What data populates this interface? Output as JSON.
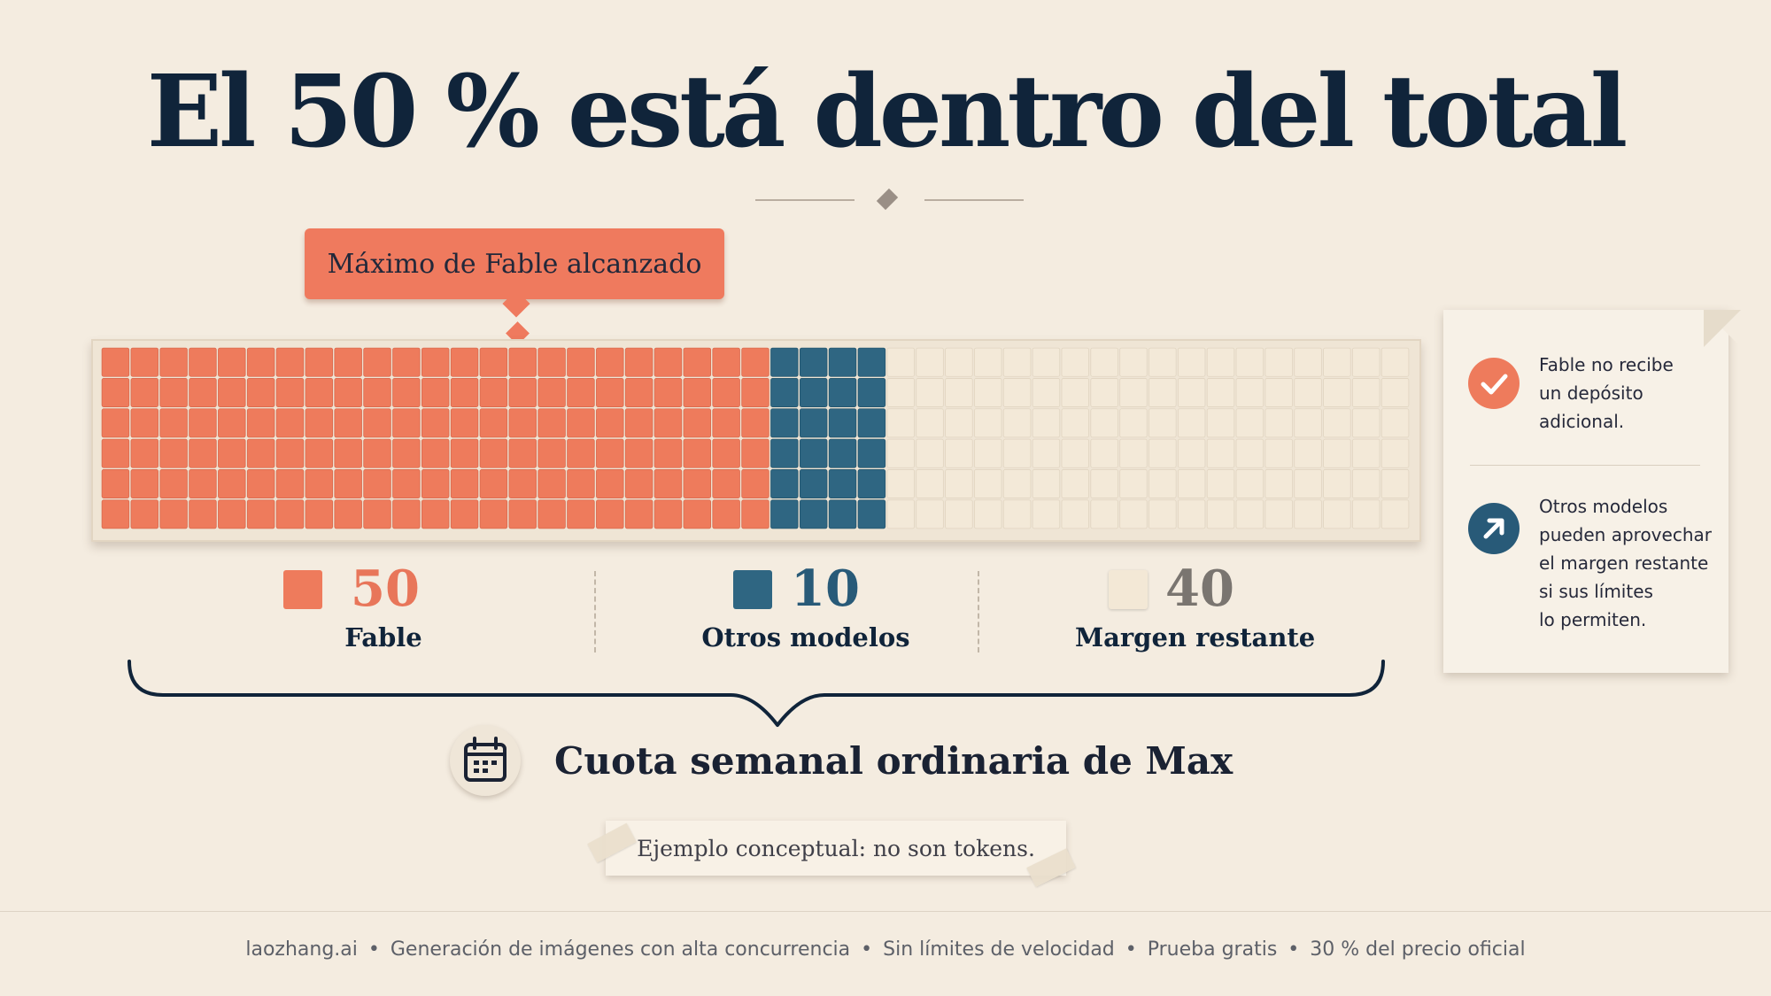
{
  "title": "El 50 % está dentro del total",
  "callout": "Máximo de Fable alcanzado",
  "chart_data": {
    "type": "waffle",
    "title": "El 50 % está dentro del total",
    "grid": {
      "rows": 6,
      "cols": 45
    },
    "categories": [
      "Fable",
      "Otros modelos",
      "Margen restante"
    ],
    "values": [
      50,
      10,
      40
    ],
    "colors": [
      "#ee7b5c",
      "#2f6682",
      "#f3e9d8"
    ],
    "annotation": "Máximo de Fable alcanzado",
    "total_label": "Cuota semanal ordinaria de Max"
  },
  "stats": [
    {
      "value": "50",
      "label": "Fable",
      "color": "#ee7b5c",
      "num_color": "#e8765a"
    },
    {
      "value": "10",
      "label": "Otros modelos",
      "color": "#2f6682",
      "num_color": "#285a78"
    },
    {
      "value": "40",
      "label": "Margen restante",
      "color": "#f3e8d6",
      "num_color": "#7a7570"
    }
  ],
  "quota": {
    "label": "Cuota semanal ordinaria de Max",
    "icon": "calendar-icon"
  },
  "note": "Ejemplo conceptual: no son tokens.",
  "side": [
    {
      "icon": "check-icon",
      "color": "#ee7b5c",
      "lines": [
        "Fable no recibe",
        "un depósito",
        "adicional."
      ]
    },
    {
      "icon": "arrow-up-right-icon",
      "color": "#285a78",
      "lines": [
        "Otros modelos",
        "pueden aprovechar",
        "el margen restante",
        "si sus límites",
        "lo permiten."
      ]
    }
  ],
  "footer": [
    "laozhang.ai",
    "Generación de imágenes con alta concurrencia",
    "Sin límites de velocidad",
    "Prueba gratis",
    "30 % del precio oficial"
  ]
}
